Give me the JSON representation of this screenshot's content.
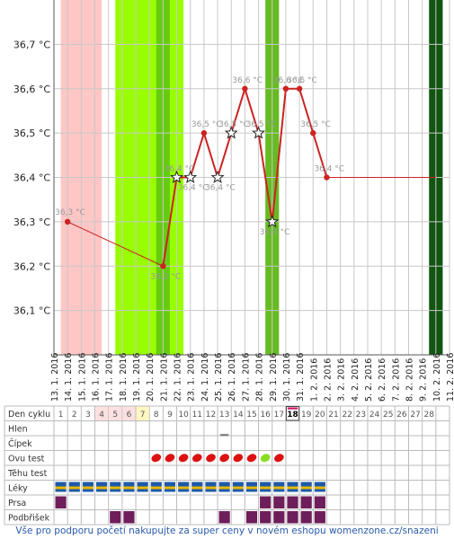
{
  "chart_data": {
    "type": "line",
    "y_unit": "°C",
    "ylim": [
      36.0,
      36.8
    ],
    "y_ticks": [
      "36,1 °C",
      "36,2 °C",
      "36,3 °C",
      "36,4 °C",
      "36,5 °C",
      "36,6 °C",
      "36,7 °C"
    ],
    "y_tick_values": [
      36.1,
      36.2,
      36.3,
      36.4,
      36.5,
      36.6,
      36.7
    ],
    "x_labels": [
      "13. 1. 2016",
      "14. 1. 2016",
      "15. 1. 2016",
      "16. 1. 2016",
      "17. 1. 2016",
      "18. 1. 2016",
      "19. 1. 2016",
      "20. 1. 2016",
      "21. 1. 2016",
      "22. 1. 2016",
      "23. 1. 2016",
      "24. 1. 2016",
      "25. 1. 2016",
      "26. 1. 2016",
      "27. 1. 2016",
      "28. 1. 2016",
      "29. 1. 2016",
      "30. 1. 2016",
      "31. 1. 2016",
      "1. 2. 2016",
      "2. 2. 2016",
      "3. 2. 2016",
      "4. 2. 2016",
      "5. 2. 2016",
      "6. 2. 2016",
      "7. 2. 2016",
      "8. 2. 2016",
      "9. 2. 2016",
      "10. 2. 2016",
      "11. 2. 2016"
    ],
    "points": [
      {
        "day": 14,
        "value": 36.3,
        "label": "36,3 °C",
        "marker": "dot"
      },
      {
        "day": 21,
        "value": 36.2,
        "label": "36,2 °C",
        "marker": "dot"
      },
      {
        "day": 22,
        "value": 36.4,
        "label": "36,4 °C",
        "marker": "star"
      },
      {
        "day": 23,
        "value": 36.4,
        "label": "36,4 °C",
        "marker": "star"
      },
      {
        "day": 24,
        "value": 36.5,
        "label": "36,5 °C",
        "marker": "dot"
      },
      {
        "day": 25,
        "value": 36.4,
        "label": "36,4 °C",
        "marker": "star"
      },
      {
        "day": 26,
        "value": 36.5,
        "label": "36,5 °C",
        "marker": "star"
      },
      {
        "day": 27,
        "value": 36.6,
        "label": "36,6 °C",
        "marker": "dot"
      },
      {
        "day": 28,
        "value": 36.5,
        "label": "36,5 °C",
        "marker": "star"
      },
      {
        "day": 29,
        "value": 36.3,
        "label": "36,3 °C",
        "marker": "star"
      },
      {
        "day": 30,
        "value": 36.6,
        "label": "36,6 °C",
        "marker": "dot"
      },
      {
        "day": 31,
        "value": 36.6,
        "label": "36,6 °C",
        "marker": "dot"
      },
      {
        "day": 32,
        "value": 36.5,
        "label": "36,5 °C",
        "marker": "dot"
      },
      {
        "day": 33,
        "value": 36.4,
        "label": "36,4 °C",
        "marker": "dot"
      }
    ],
    "extension_to_day": 41,
    "bands": [
      {
        "from": 14,
        "to": 16,
        "color": "#ffc6c6"
      },
      {
        "from": 18,
        "to": 22,
        "color": "#99ff00"
      },
      {
        "from": 21,
        "to": 21,
        "color": "#66cc11"
      },
      {
        "from": 29,
        "to": 29,
        "color": "#66bb22"
      },
      {
        "from": 41,
        "to": 41,
        "color": "#115511"
      }
    ],
    "colors": {
      "line": "#cc2222",
      "grid": "#c8c8c8",
      "ovu": "#dd1111",
      "ovu_positive": "#88dd22",
      "meds_top": "#1e5aa8",
      "meds_bottom": "#e8b800",
      "purple": "#6e1e5a"
    }
  },
  "table": {
    "row_labels": [
      "Den cyklu",
      "Hlen",
      "Čípek",
      "Ovu test",
      "Těhu test",
      "Léky",
      "Prsa",
      "Podbřišek"
    ],
    "cycle_days": [
      "1",
      "2",
      "3",
      "4",
      "5",
      "6",
      "7",
      "8",
      "9",
      "10",
      "11",
      "12",
      "13",
      "14",
      "15",
      "16",
      "17",
      "18",
      "19",
      "20",
      "21",
      "22",
      "23",
      "24",
      "25",
      "26",
      "27",
      "28"
    ],
    "highlight_days": {
      "4": "pink",
      "5": "pink",
      "6": "pink",
      "7": "yellow"
    },
    "today_day": "18",
    "cervix_mark_day": 13,
    "ovu_days": [
      8,
      9,
      10,
      11,
      12,
      13,
      14,
      15,
      16,
      17
    ],
    "ovu_positive_day": 16,
    "meds_days": [
      1,
      2,
      3,
      4,
      5,
      6,
      7,
      8,
      9,
      10,
      11,
      12,
      13,
      14,
      15,
      16,
      17,
      18,
      19,
      20
    ],
    "breast_days": [
      1,
      16,
      17,
      18,
      19,
      20
    ],
    "belly_days": [
      5,
      6,
      13,
      15,
      16,
      17,
      18,
      19,
      20
    ]
  },
  "footer": "Vše pro podporu početí nakupujte za super ceny v novém eshopu womenzone.cz/snazeni"
}
